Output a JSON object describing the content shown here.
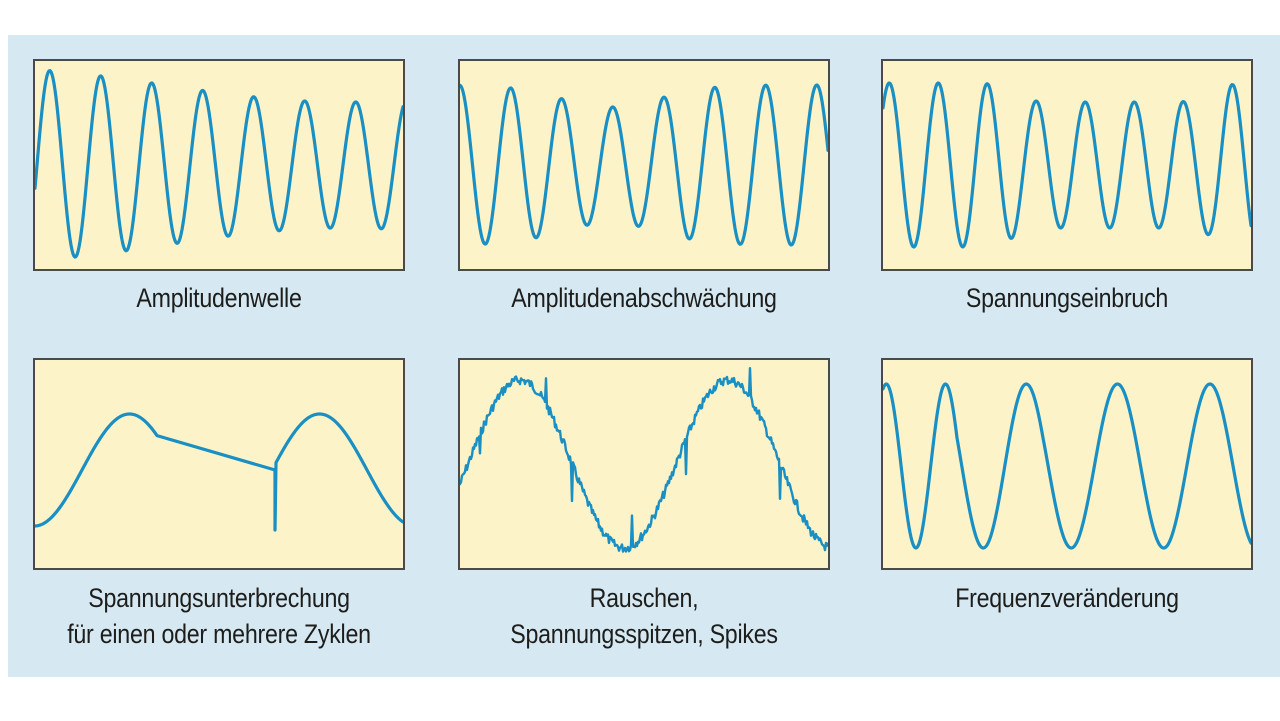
{
  "colors": {
    "background": "#d6e8f1",
    "plot_background": "#fcf3c8",
    "plot_border": "#4a4a4a",
    "wave": "#1a8fc3",
    "text": "#1d1d1b"
  },
  "panels": [
    {
      "id": "amplitude-wave",
      "wave_type": "amplitude_modulation",
      "caption": [
        "Amplitudenwelle"
      ]
    },
    {
      "id": "amplitude-attenuation",
      "wave_type": "amplitude_attenuation",
      "caption": [
        "Amplitudenabschwächung"
      ]
    },
    {
      "id": "voltage-dip",
      "wave_type": "voltage_dip",
      "caption": [
        "Spannungseinbruch"
      ]
    },
    {
      "id": "voltage-interruption",
      "wave_type": "interruption",
      "caption": [
        "Spannungsunterbrechung",
        "für einen oder mehrere Zyklen"
      ]
    },
    {
      "id": "noise-spikes",
      "wave_type": "noise_with_spikes",
      "caption": [
        "Rauschen,",
        "Spannungsspitzen, Spikes"
      ]
    },
    {
      "id": "frequency-change",
      "wave_type": "frequency_variation",
      "caption": [
        "Frequenzveränderung"
      ]
    }
  ]
}
